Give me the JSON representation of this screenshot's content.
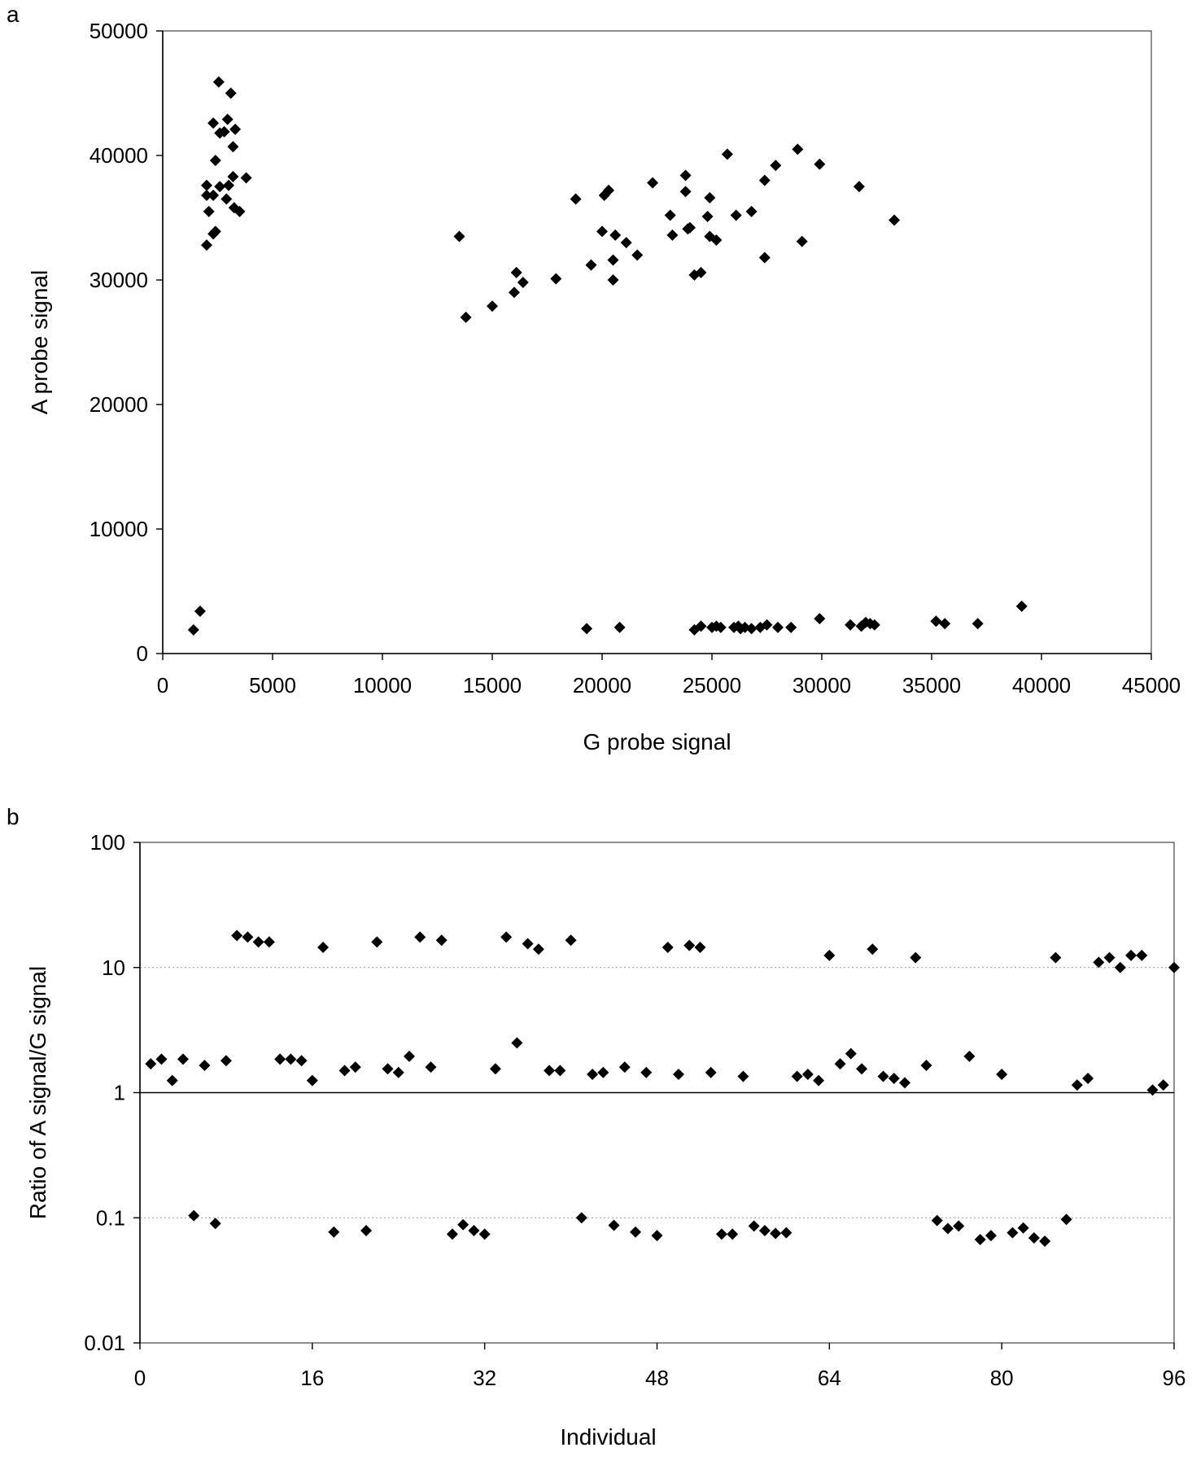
{
  "panel_a": {
    "letter": "a"
  },
  "panel_b": {
    "letter": "b"
  },
  "chart_data": [
    {
      "panel": "a",
      "type": "scatter",
      "xlabel": "G probe signal",
      "ylabel": "A probe signal",
      "xlim": [
        0,
        45000
      ],
      "ylim": [
        0,
        50000
      ],
      "xticks": [
        "0",
        "5000",
        "10000",
        "15000",
        "20000",
        "25000",
        "30000",
        "35000",
        "40000",
        "45000"
      ],
      "yticks": [
        "0",
        "10000",
        "20000",
        "30000",
        "40000",
        "50000"
      ],
      "marker": "diamond",
      "color": "#000000",
      "points": [
        [
          2550,
          45900
        ],
        [
          3100,
          45000
        ],
        [
          2300,
          42600
        ],
        [
          2950,
          42900
        ],
        [
          2600,
          41800
        ],
        [
          2800,
          41900
        ],
        [
          3300,
          42100
        ],
        [
          3200,
          40700
        ],
        [
          2400,
          39600
        ],
        [
          3200,
          38300
        ],
        [
          2000,
          37600
        ],
        [
          2600,
          37500
        ],
        [
          3000,
          37600
        ],
        [
          3800,
          38200
        ],
        [
          2000,
          36800
        ],
        [
          2300,
          36800
        ],
        [
          2900,
          36500
        ],
        [
          2100,
          35500
        ],
        [
          3250,
          35800
        ],
        [
          3500,
          35500
        ],
        [
          2300,
          33700
        ],
        [
          2400,
          33900
        ],
        [
          2000,
          32800
        ],
        [
          1400,
          1900
        ],
        [
          1700,
          3400
        ],
        [
          13500,
          33500
        ],
        [
          13800,
          27000
        ],
        [
          15000,
          27900
        ],
        [
          16100,
          30600
        ],
        [
          16000,
          29000
        ],
        [
          16400,
          29800
        ],
        [
          17900,
          30100
        ],
        [
          18800,
          36500
        ],
        [
          19500,
          31200
        ],
        [
          20000,
          33900
        ],
        [
          20100,
          36800
        ],
        [
          20300,
          37200
        ],
        [
          20500,
          31600
        ],
        [
          20500,
          30000
        ],
        [
          20600,
          33600
        ],
        [
          21100,
          33000
        ],
        [
          21600,
          32000
        ],
        [
          22300,
          37800
        ],
        [
          23100,
          35200
        ],
        [
          23200,
          33600
        ],
        [
          23800,
          38400
        ],
        [
          23800,
          37100
        ],
        [
          23900,
          34100
        ],
        [
          24000,
          34200
        ],
        [
          24200,
          30400
        ],
        [
          24500,
          30600
        ],
        [
          24800,
          35100
        ],
        [
          24900,
          36600
        ],
        [
          24900,
          33500
        ],
        [
          25200,
          33200
        ],
        [
          25700,
          40100
        ],
        [
          26100,
          35200
        ],
        [
          26800,
          35500
        ],
        [
          27400,
          38000
        ],
        [
          27400,
          31800
        ],
        [
          27900,
          39200
        ],
        [
          28900,
          40500
        ],
        [
          29100,
          33100
        ],
        [
          29900,
          39300
        ],
        [
          31700,
          37500
        ],
        [
          33300,
          34800
        ],
        [
          19300,
          2000
        ],
        [
          20800,
          2100
        ],
        [
          24200,
          1900
        ],
        [
          24500,
          2200
        ],
        [
          25000,
          2100
        ],
        [
          25200,
          2200
        ],
        [
          25400,
          2100
        ],
        [
          26000,
          2100
        ],
        [
          26200,
          2200
        ],
        [
          26300,
          2000
        ],
        [
          26500,
          2100
        ],
        [
          26800,
          2000
        ],
        [
          27200,
          2100
        ],
        [
          27500,
          2300
        ],
        [
          28000,
          2100
        ],
        [
          28600,
          2100
        ],
        [
          29900,
          2800
        ],
        [
          31300,
          2300
        ],
        [
          31800,
          2200
        ],
        [
          32000,
          2500
        ],
        [
          32200,
          2400
        ],
        [
          32400,
          2300
        ],
        [
          35200,
          2600
        ],
        [
          35600,
          2400
        ],
        [
          37100,
          2400
        ],
        [
          39100,
          3800
        ]
      ]
    },
    {
      "panel": "b",
      "type": "scatter",
      "xlabel": "Individual",
      "ylabel": "Ratio of  A signal/G signal",
      "xlim": [
        0,
        96
      ],
      "ylim": [
        0.01,
        100
      ],
      "yscale": "log",
      "xticks": [
        "0",
        "16",
        "32",
        "48",
        "64",
        "80",
        "96"
      ],
      "yticks": [
        "0.01",
        "0.1",
        "1",
        "10",
        "100"
      ],
      "grid": "horizontal dotted at 0.1 and 10, solid at 1",
      "marker": "diamond",
      "color": "#000000",
      "points": [
        [
          1,
          1.7
        ],
        [
          2,
          1.85
        ],
        [
          3,
          1.25
        ],
        [
          4,
          1.85
        ],
        [
          5,
          0.104
        ],
        [
          6,
          1.65
        ],
        [
          7,
          0.09
        ],
        [
          8,
          1.8
        ],
        [
          9,
          18
        ],
        [
          10,
          17.5
        ],
        [
          11,
          16
        ],
        [
          12,
          16
        ],
        [
          13,
          1.85
        ],
        [
          14,
          1.85
        ],
        [
          15,
          1.8
        ],
        [
          16,
          1.25
        ],
        [
          17,
          14.5
        ],
        [
          18,
          0.077
        ],
        [
          19,
          1.5
        ],
        [
          20,
          1.6
        ],
        [
          21,
          0.079
        ],
        [
          22,
          16
        ],
        [
          23,
          1.55
        ],
        [
          24,
          1.45
        ],
        [
          25,
          1.95
        ],
        [
          26,
          17.5
        ],
        [
          27,
          1.6
        ],
        [
          28,
          16.5
        ],
        [
          29,
          0.074
        ],
        [
          30,
          0.088
        ],
        [
          31,
          0.079
        ],
        [
          32,
          0.074
        ],
        [
          33,
          1.55
        ],
        [
          34,
          17.5
        ],
        [
          35,
          2.5
        ],
        [
          36,
          15.5
        ],
        [
          37,
          14
        ],
        [
          38,
          1.5
        ],
        [
          39,
          1.5
        ],
        [
          40,
          16.5
        ],
        [
          41,
          0.1
        ],
        [
          42,
          1.4
        ],
        [
          43,
          1.45
        ],
        [
          44,
          0.087
        ],
        [
          45,
          1.6
        ],
        [
          46,
          0.077
        ],
        [
          47,
          1.45
        ],
        [
          48,
          0.072
        ],
        [
          49,
          14.5
        ],
        [
          50,
          1.4
        ],
        [
          51,
          15
        ],
        [
          52,
          14.5
        ],
        [
          53,
          1.45
        ],
        [
          54,
          0.074
        ],
        [
          55,
          0.074
        ],
        [
          56,
          1.35
        ],
        [
          57,
          0.086
        ],
        [
          58,
          0.079
        ],
        [
          59,
          0.075
        ],
        [
          60,
          0.076
        ],
        [
          61,
          1.35
        ],
        [
          62,
          1.4
        ],
        [
          63,
          1.25
        ],
        [
          64,
          12.5
        ],
        [
          65,
          1.7
        ],
        [
          66,
          2.05
        ],
        [
          67,
          1.55
        ],
        [
          68,
          14
        ],
        [
          69,
          1.35
        ],
        [
          70,
          1.3
        ],
        [
          71,
          1.2
        ],
        [
          72,
          12
        ],
        [
          73,
          1.65
        ],
        [
          74,
          0.095
        ],
        [
          75,
          0.082
        ],
        [
          76,
          0.086
        ],
        [
          77,
          1.95
        ],
        [
          78,
          0.067
        ],
        [
          79,
          0.072
        ],
        [
          80,
          1.4
        ],
        [
          81,
          0.076
        ],
        [
          82,
          0.083
        ],
        [
          83,
          0.069
        ],
        [
          84,
          0.065
        ],
        [
          85,
          12
        ],
        [
          86,
          0.097
        ],
        [
          87,
          1.15
        ],
        [
          88,
          1.3
        ],
        [
          89,
          11
        ],
        [
          90,
          12
        ],
        [
          91,
          10
        ],
        [
          92,
          12.5
        ],
        [
          93,
          12.5
        ],
        [
          94,
          1.05
        ],
        [
          95,
          1.15
        ],
        [
          96,
          10
        ]
      ]
    }
  ]
}
